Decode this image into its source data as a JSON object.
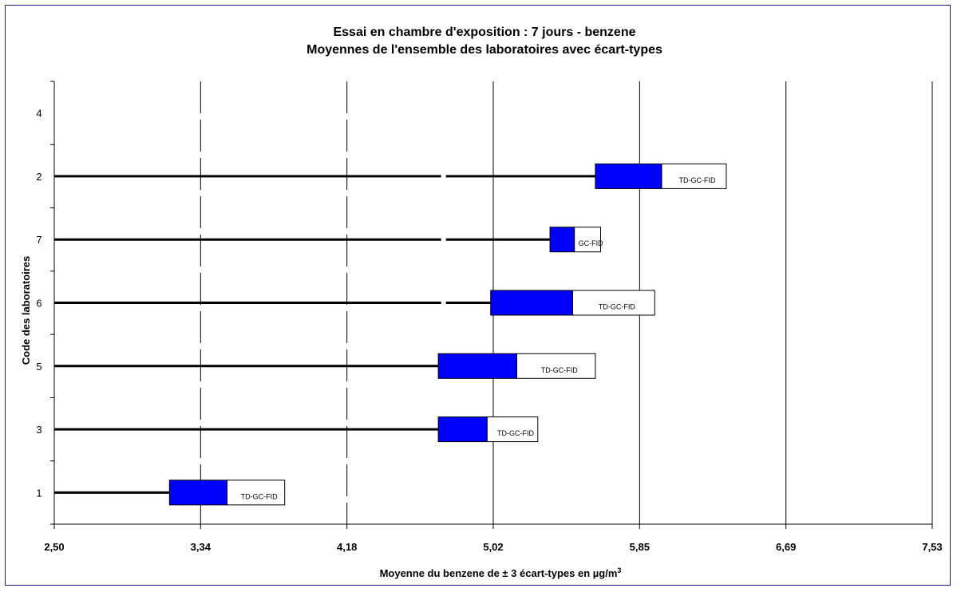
{
  "chart_data": {
    "type": "bar",
    "title": [
      "Essai en chambre d'exposition : 7 jours  -  benzene",
      "Moyennes de l'ensemble des laboratoires avec écart-types"
    ],
    "xlabel": "Moyenne du benzene de ± 3 écart-types en µg/m",
    "xlabel_superscript": "3",
    "ylabel": "Code des laboratoires",
    "x_ticks": [
      "2,50",
      "3,34",
      "4,18",
      "5,02",
      "5,85",
      "6,69",
      "7,53"
    ],
    "xlim": [
      2.5,
      7.53
    ],
    "grid": "vertical",
    "categories": [
      "1",
      "3",
      "5",
      "6",
      "7",
      "2",
      "4"
    ],
    "series": [
      {
        "values": [
          {
            "lab": "1",
            "low": 3.16,
            "mean": 3.49,
            "high": 3.82,
            "method": "TD-GC-FID"
          },
          {
            "lab": "3",
            "low": 4.7,
            "mean": 4.98,
            "high": 5.27,
            "method": "TD-GC-FID"
          },
          {
            "lab": "5",
            "low": 4.7,
            "mean": 5.15,
            "high": 5.6,
            "method": "TD-GC-FID"
          },
          {
            "lab": "6",
            "low": 5.0,
            "mean": 5.47,
            "high": 5.94,
            "method": "TD-GC-FID"
          },
          {
            "lab": "7",
            "low": 5.34,
            "mean": 5.48,
            "high": 5.63,
            "method": "GC-FID"
          },
          {
            "lab": "2",
            "low": 5.6,
            "mean": 5.98,
            "high": 6.35,
            "method": "TD-GC-FID"
          }
        ]
      }
    ],
    "colors": {
      "box_low": "#0000ff",
      "box_high": "#ffffff",
      "line": "#000000",
      "frame": "#1a1a7a"
    }
  }
}
